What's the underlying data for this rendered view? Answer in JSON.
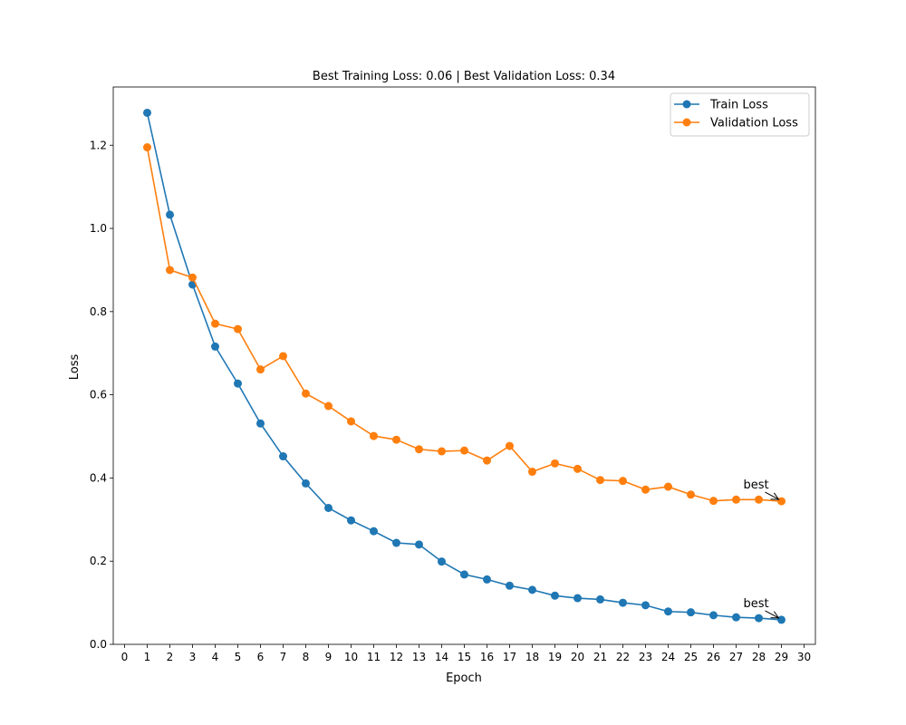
{
  "chart_data": {
    "type": "line",
    "title": "Best Training Loss: 0.06 | Best Validation Loss: 0.34",
    "xlabel": "Epoch",
    "ylabel": "Loss",
    "xlim": [
      -0.5,
      30.5
    ],
    "ylim": [
      0.0,
      1.34
    ],
    "xticks": [
      0,
      1,
      2,
      3,
      4,
      5,
      6,
      7,
      8,
      9,
      10,
      11,
      12,
      13,
      14,
      15,
      16,
      17,
      18,
      19,
      20,
      21,
      22,
      23,
      24,
      25,
      26,
      27,
      28,
      29,
      30
    ],
    "yticks": [
      0.0,
      0.2,
      0.4,
      0.6,
      0.8,
      1.0,
      1.2
    ],
    "ytick_labels": [
      "0.0",
      "0.2",
      "0.4",
      "0.6",
      "0.8",
      "1.0",
      "1.2"
    ],
    "grid": false,
    "legend_position": "top-right",
    "x": [
      1,
      2,
      3,
      4,
      5,
      6,
      7,
      8,
      9,
      10,
      11,
      12,
      13,
      14,
      15,
      16,
      17,
      18,
      19,
      20,
      21,
      22,
      23,
      24,
      25,
      26,
      27,
      28,
      29
    ],
    "series": [
      {
        "name": "Train Loss",
        "color": "#1f77b4",
        "values": [
          1.278,
          1.033,
          0.865,
          0.716,
          0.627,
          0.531,
          0.452,
          0.387,
          0.328,
          0.298,
          0.272,
          0.244,
          0.24,
          0.199,
          0.168,
          0.156,
          0.141,
          0.131,
          0.117,
          0.111,
          0.108,
          0.1,
          0.094,
          0.079,
          0.077,
          0.07,
          0.065,
          0.063,
          0.059
        ]
      },
      {
        "name": "Validation Loss",
        "color": "#ff7f0e",
        "values": [
          1.195,
          0.9,
          0.882,
          0.771,
          0.758,
          0.661,
          0.693,
          0.603,
          0.573,
          0.536,
          0.501,
          0.492,
          0.469,
          0.464,
          0.466,
          0.442,
          0.477,
          0.415,
          0.435,
          0.422,
          0.395,
          0.393,
          0.372,
          0.379,
          0.36,
          0.345,
          0.348,
          0.348,
          0.344
        ]
      }
    ],
    "annotations": [
      {
        "text": "best",
        "series": "Train Loss",
        "x": 29,
        "y": 0.059
      },
      {
        "text": "best",
        "series": "Validation Loss",
        "x": 29,
        "y": 0.344
      }
    ]
  }
}
